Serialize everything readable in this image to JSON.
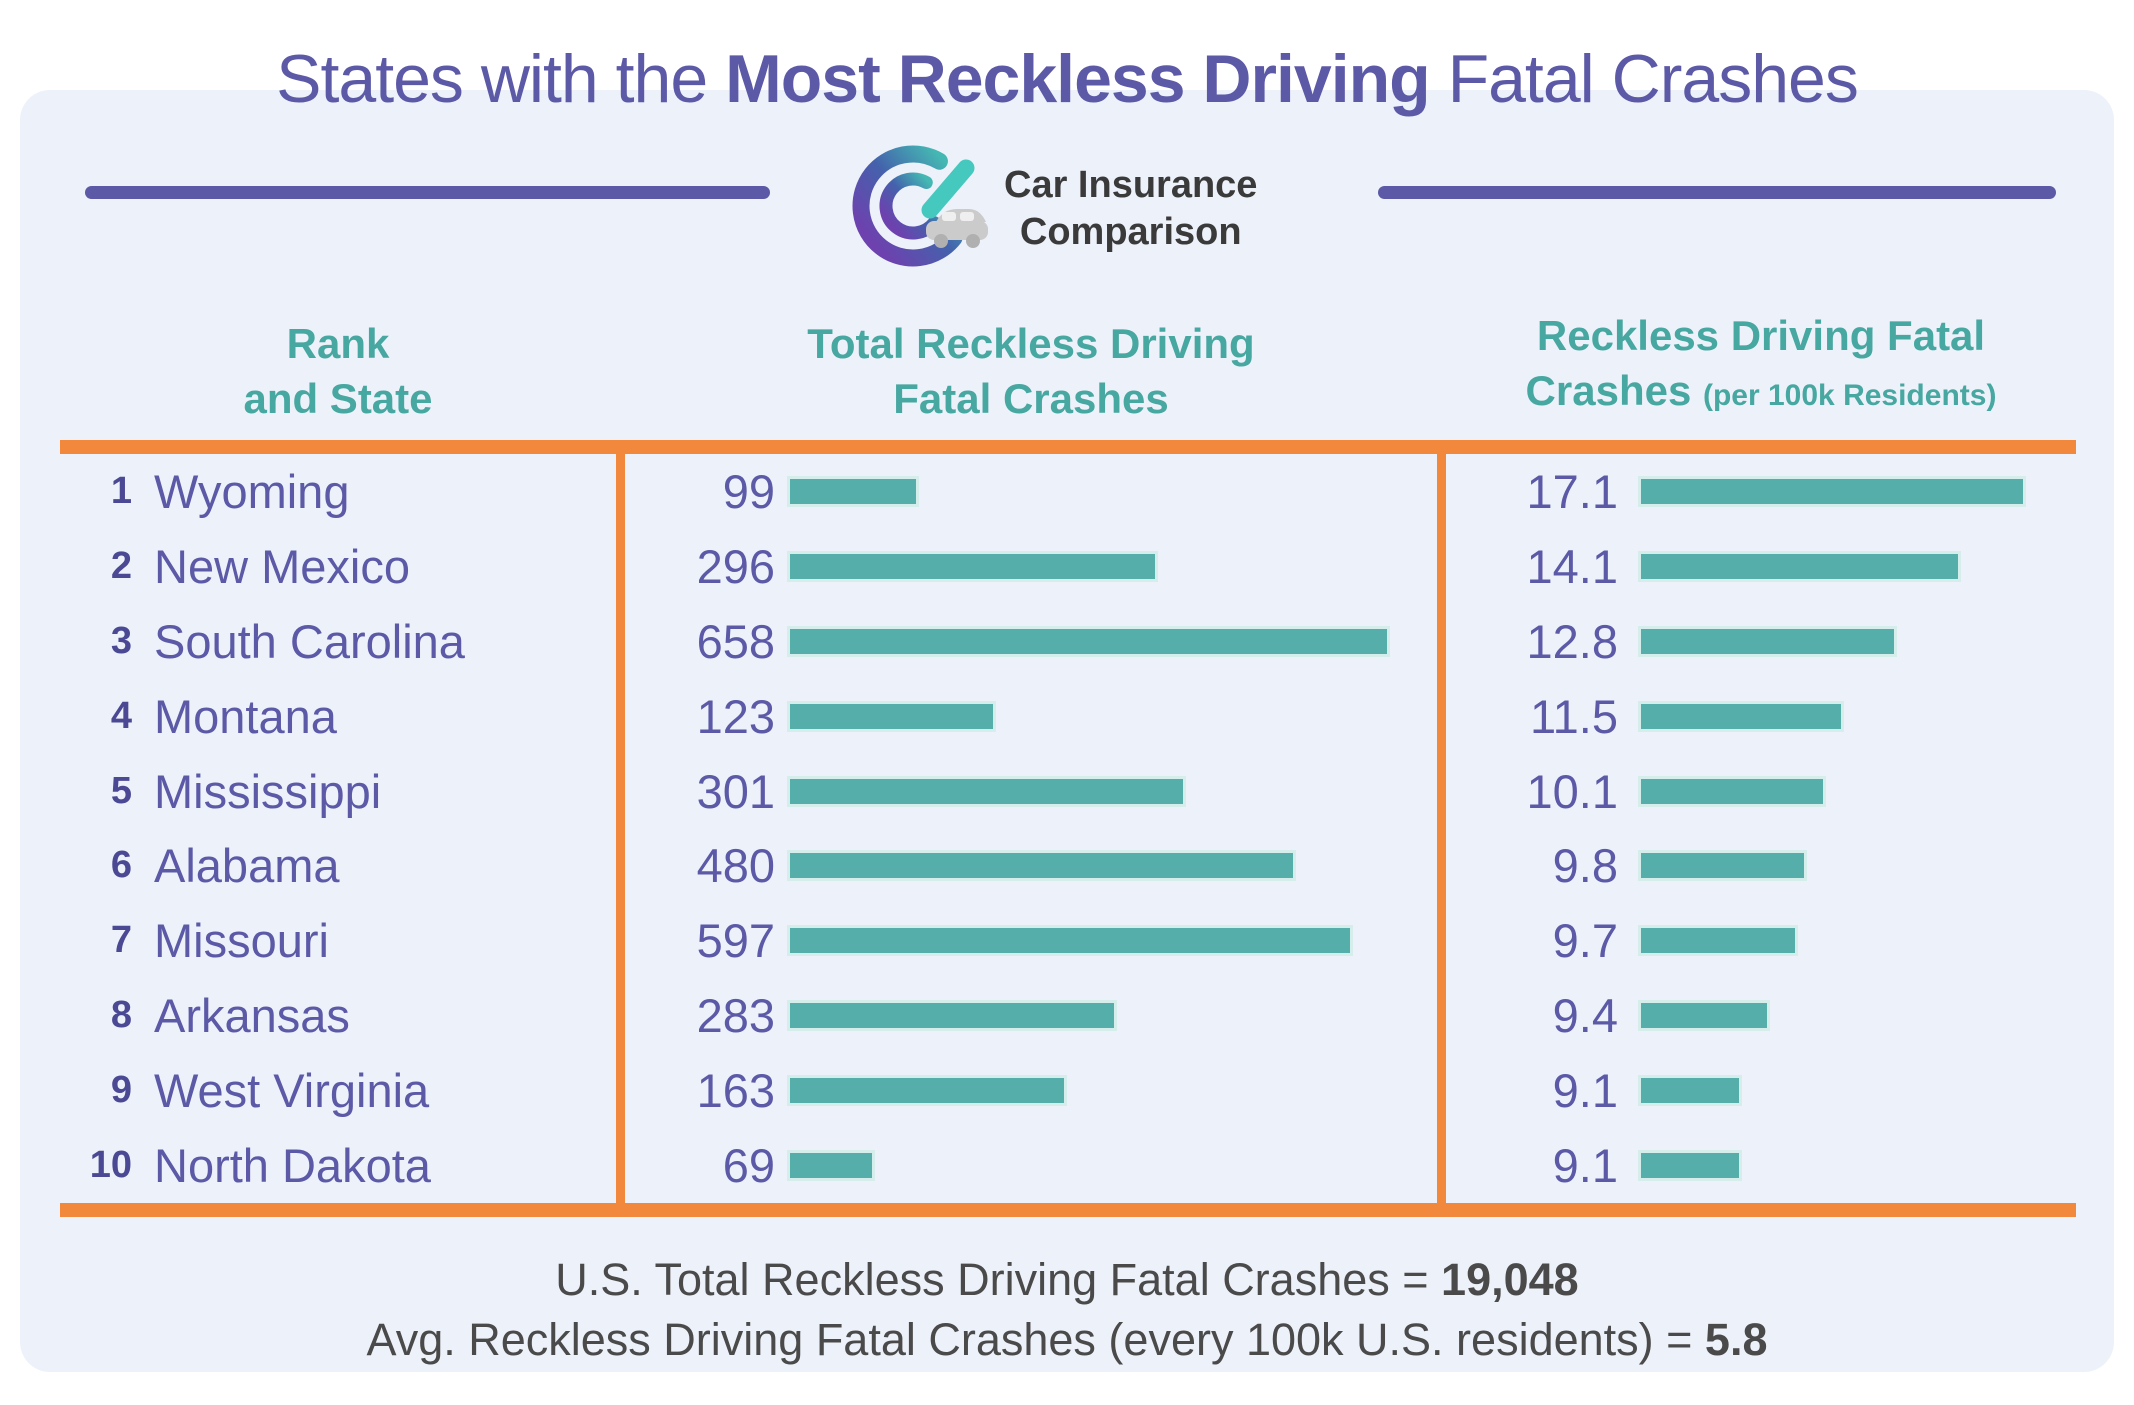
{
  "title": {
    "pre": "States with the ",
    "bold": "Most Reckless Driving",
    "post": " Fatal Crashes"
  },
  "logo": {
    "line1": "Car Insurance",
    "line2": "Comparison"
  },
  "columns": {
    "rank_state": {
      "line1": "Rank",
      "line2": "and State"
    },
    "total": {
      "line1": "Total Reckless Driving",
      "line2": "Fatal Crashes"
    },
    "per100k": {
      "line1": "Reckless Driving Fatal",
      "line2_main": "Crashes ",
      "line2_sub": "(per 100k Residents)"
    }
  },
  "rows": [
    {
      "rank": "1",
      "state": "Wyoming",
      "total": "99",
      "total_bar": 132,
      "per100k": "17.1",
      "per100k_bar": 388
    },
    {
      "rank": "2",
      "state": "New Mexico",
      "total": "296",
      "total_bar": 371,
      "per100k": "14.1",
      "per100k_bar": 323
    },
    {
      "rank": "3",
      "state": "South Carolina",
      "total": "658",
      "total_bar": 603,
      "per100k": "12.8",
      "per100k_bar": 259
    },
    {
      "rank": "4",
      "state": "Montana",
      "total": "123",
      "total_bar": 209,
      "per100k": "11.5",
      "per100k_bar": 206
    },
    {
      "rank": "5",
      "state": "Mississippi",
      "total": "301",
      "total_bar": 399,
      "per100k": "10.1",
      "per100k_bar": 188
    },
    {
      "rank": "6",
      "state": "Alabama",
      "total": "480",
      "total_bar": 509,
      "per100k": "9.8",
      "per100k_bar": 169
    },
    {
      "rank": "7",
      "state": "Missouri",
      "total": "597",
      "total_bar": 566,
      "per100k": "9.7",
      "per100k_bar": 160
    },
    {
      "rank": "8",
      "state": "Arkansas",
      "total": "283",
      "total_bar": 330,
      "per100k": "9.4",
      "per100k_bar": 132
    },
    {
      "rank": "9",
      "state": "West Virginia",
      "total": "163",
      "total_bar": 280,
      "per100k": "9.1",
      "per100k_bar": 104
    },
    {
      "rank": "10",
      "state": "North Dakota",
      "total": "69",
      "total_bar": 88,
      "per100k": "9.1",
      "per100k_bar": 104
    }
  ],
  "footer": {
    "line1_text": "U.S. Total Reckless Driving Fatal Crashes = ",
    "line1_value": "19,048",
    "line2_text": "Avg. Reckless Driving Fatal Crashes (every 100k U.S. residents) = ",
    "line2_value": "5.8"
  },
  "colors": {
    "card-bg": "#EDF1FA",
    "purple": "#5C59A7",
    "rank-purple": "#4B4994",
    "teal-head": "#47A7A1",
    "bar-teal": "#55AEA9",
    "bar-edge": "#D5EDEB",
    "orange": "#F1883B",
    "footer-gray": "#4A4A4A"
  },
  "chart_data": {
    "type": "bar",
    "orientation": "horizontal",
    "title": "States with the Most Reckless Driving Fatal Crashes",
    "categories": [
      "Wyoming",
      "New Mexico",
      "South Carolina",
      "Montana",
      "Mississippi",
      "Alabama",
      "Missouri",
      "Arkansas",
      "West Virginia",
      "North Dakota"
    ],
    "series": [
      {
        "name": "Total Reckless Driving Fatal Crashes",
        "values": [
          99,
          296,
          658,
          123,
          301,
          480,
          597,
          283,
          163,
          69
        ]
      },
      {
        "name": "Reckless Driving Fatal Crashes (per 100k Residents)",
        "values": [
          17.1,
          14.1,
          12.8,
          11.5,
          10.1,
          9.8,
          9.7,
          9.4,
          9.1,
          9.1
        ]
      }
    ],
    "ranks": [
      1,
      2,
      3,
      4,
      5,
      6,
      7,
      8,
      9,
      10
    ],
    "annotations": [
      "U.S. Total Reckless Driving Fatal Crashes = 19,048",
      "Avg. Reckless Driving Fatal Crashes (every 100k U.S. residents) = 5.8"
    ],
    "legend_position": "column-headers",
    "grid": false
  }
}
